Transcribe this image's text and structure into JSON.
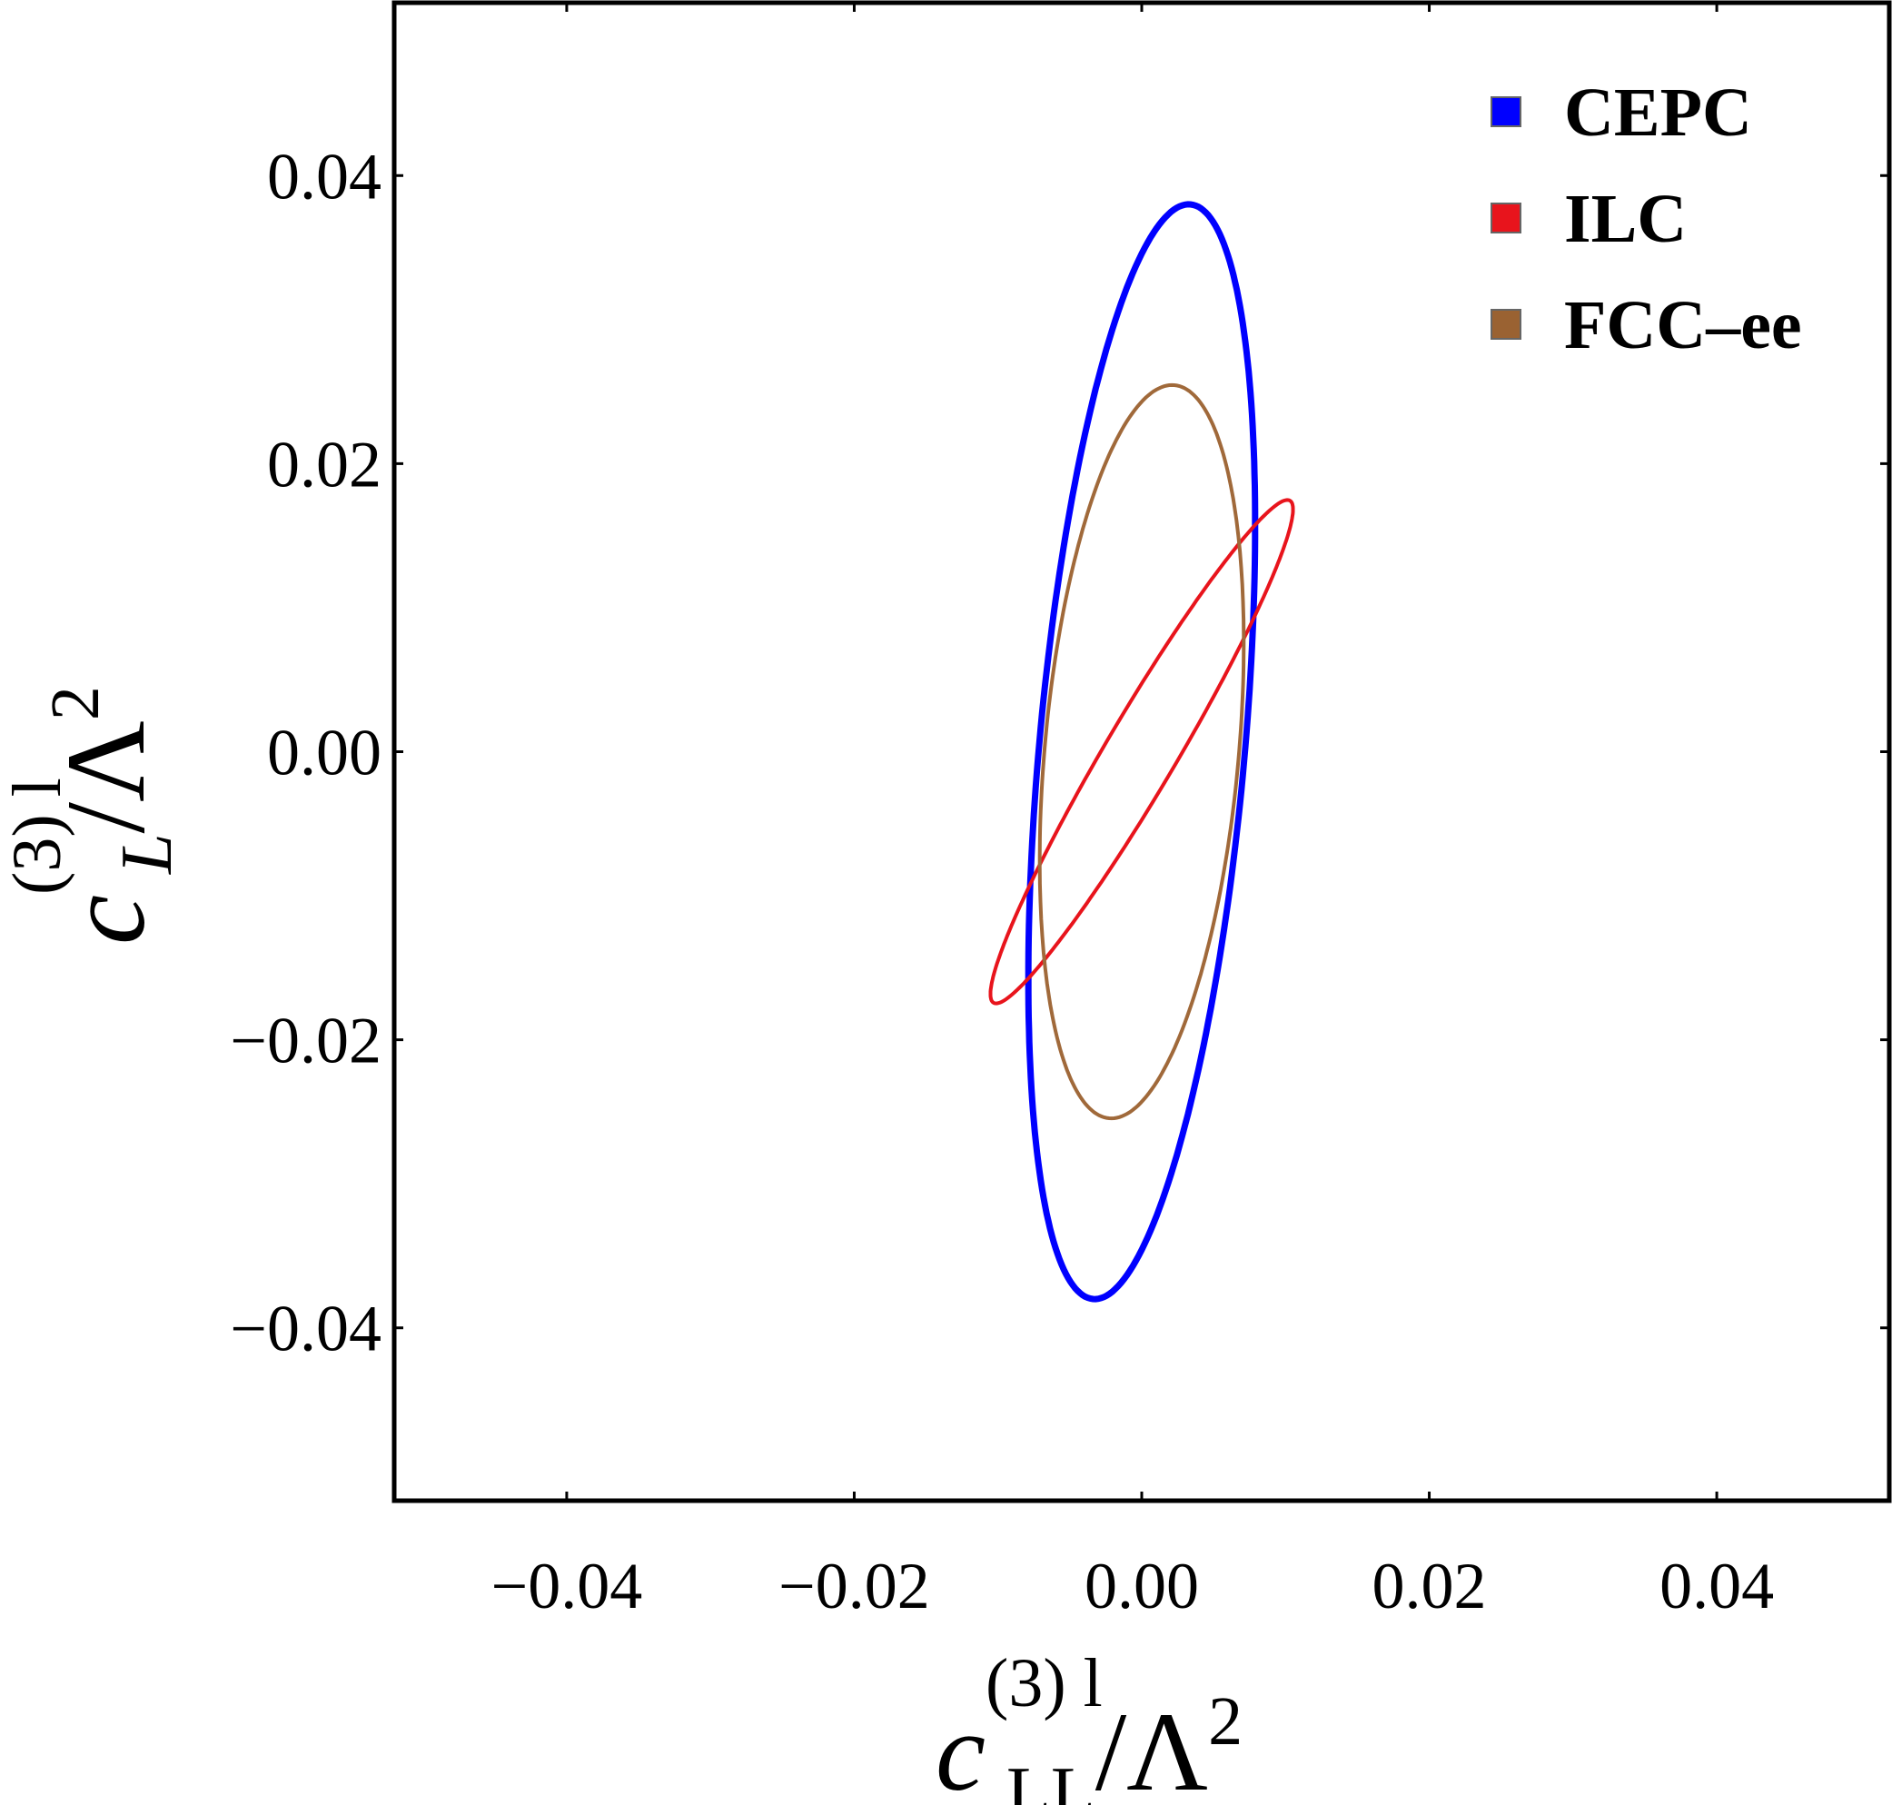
{
  "chart_data": {
    "type": "contour",
    "xlim": [
      -0.052,
      0.052
    ],
    "ylim": [
      -0.052,
      0.052
    ],
    "xticks": [
      -0.04,
      -0.02,
      0.0,
      0.02,
      0.04
    ],
    "yticks": [
      -0.04,
      -0.02,
      0.0,
      0.02,
      0.04
    ],
    "xtick_labels": [
      "−0.04",
      "−0.02",
      "0.00",
      "0.02",
      "0.04"
    ],
    "ytick_labels": [
      "−0.04",
      "−0.02",
      "0.00",
      "0.02",
      "0.04"
    ],
    "xlabel": {
      "base": "c",
      "superscript": "(3) l",
      "subscript": "LL",
      "suffix": "/Λ",
      "power": "2"
    },
    "ylabel": {
      "base": "c",
      "superscript": "(3) l",
      "subscript": "L",
      "suffix": "/Λ",
      "power": "2"
    },
    "legend_position": "top-right",
    "series": [
      {
        "name": "CEPC",
        "color": "#0000ff",
        "shape": "ellipse",
        "center": [
          0.0,
          0.0
        ],
        "semi_axes": [
          0.00715,
          0.03815
        ],
        "angle_deg": 84.9
      },
      {
        "name": "ILC",
        "color": "#e8141c",
        "shape": "ellipse",
        "center": [
          0.0,
          0.0
        ],
        "semi_axes": [
          0.00246,
          0.02025
        ],
        "angle_deg": 59.4
      },
      {
        "name": "FCC–ee",
        "color": "#a0693a",
        "legend_swatch_color": "#9a6232",
        "shape": "ellipse",
        "center": [
          0.0,
          0.0
        ],
        "semi_axes": [
          0.00675,
          0.02555
        ],
        "angle_deg": 84.9
      }
    ]
  }
}
